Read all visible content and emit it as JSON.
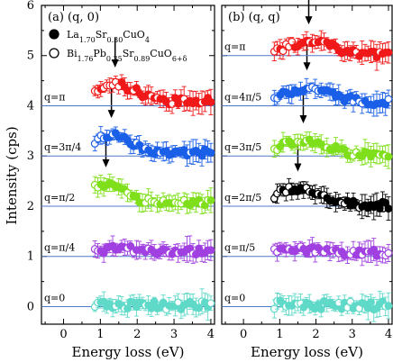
{
  "figure": {
    "ylabel": "Intensity (cps)",
    "colors": {
      "q0": "#5fd9c8",
      "q1": "#a040e0",
      "q2": "#7fdf1a",
      "q3": "#1a5fe8",
      "q4": "#f01818",
      "q2_b": "#000000",
      "baseline": "#5078c8"
    }
  },
  "chart_data": [
    {
      "type": "scatter",
      "panel_label": "(a)  (q, 0)",
      "legend": [
        {
          "marker": "filled-circle",
          "label_parts": [
            "La",
            "1.70",
            "Sr",
            "0.30",
            "CuO",
            "4"
          ]
        },
        {
          "marker": "open-circle",
          "label_parts": [
            "Bi",
            "1.76",
            "Pb",
            "0.35",
            "Sr",
            "0.89",
            "CuO",
            "6+δ"
          ]
        }
      ],
      "xlabel": "Energy loss (eV)",
      "xlim": [
        -0.6,
        4.1
      ],
      "ylim": [
        -0.35,
        6.0
      ],
      "xticks": [
        "0",
        "1",
        "2",
        "3",
        "4"
      ],
      "yticks": [
        "0",
        "1",
        "2",
        "3",
        "4",
        "5",
        "6"
      ],
      "grid": false,
      "series": [
        {
          "name": "q=0",
          "color_key": "q0",
          "offset": 0,
          "arrow_x": null,
          "amp": 0.02,
          "width": 0.8,
          "slope": 0.0,
          "seed": 11
        },
        {
          "name": "q=π/4",
          "color_key": "q1",
          "offset": 1,
          "arrow_x": null,
          "amp": 0.12,
          "width": 0.9,
          "slope": 0.03,
          "seed": 23
        },
        {
          "name": "q=π/2",
          "color_key": "q2",
          "offset": 2,
          "arrow_x": 1.15,
          "amp": 0.4,
          "width": 0.75,
          "slope": 0.02,
          "seed": 37
        },
        {
          "name": "q=3π/4",
          "color_key": "q3",
          "offset": 3,
          "arrow_x": 1.3,
          "amp": 0.38,
          "width": 0.8,
          "slope": 0.02,
          "seed": 41
        },
        {
          "name": "q=π",
          "color_key": "q4",
          "offset": 4,
          "arrow_x": 1.4,
          "amp": 0.38,
          "width": 0.85,
          "slope": 0.03,
          "seed": 53
        }
      ]
    },
    {
      "type": "scatter",
      "panel_label": "(b)  (q, q)",
      "xlabel": "Energy loss (eV)",
      "xlim": [
        -0.6,
        4.1
      ],
      "ylim": [
        -0.35,
        6.0
      ],
      "xticks": [
        "0",
        "1",
        "2",
        "3",
        "4"
      ],
      "yticks": [],
      "grid": false,
      "series": [
        {
          "name": "q=0",
          "color_key": "q0",
          "offset": 0,
          "arrow_x": null,
          "amp": 0.02,
          "width": 0.8,
          "slope": 0.0,
          "seed": 61
        },
        {
          "name": "q=π/5",
          "color_key": "q1",
          "offset": 1,
          "arrow_x": null,
          "amp": 0.12,
          "width": 0.9,
          "slope": 0.02,
          "seed": 67
        },
        {
          "name": "q=2π/5",
          "color_key": "q2_b",
          "offset": 2,
          "arrow_x": 1.5,
          "amp": 0.32,
          "width": 0.95,
          "slope": 0.0,
          "seed": 71
        },
        {
          "name": "q=3π/5",
          "color_key": "q2",
          "offset": 3,
          "arrow_x": 1.65,
          "amp": 0.28,
          "width": 0.95,
          "slope": 0.0,
          "seed": 79
        },
        {
          "name": "q=4π/5",
          "color_key": "q3",
          "offset": 4,
          "arrow_x": 1.75,
          "amp": 0.32,
          "width": 0.95,
          "slope": 0.02,
          "seed": 83
        },
        {
          "name": "q=π",
          "color_key": "q4",
          "offset": 5,
          "arrow_x": 1.8,
          "amp": 0.25,
          "width": 0.9,
          "slope": 0.0,
          "seed": 89
        }
      ]
    }
  ]
}
